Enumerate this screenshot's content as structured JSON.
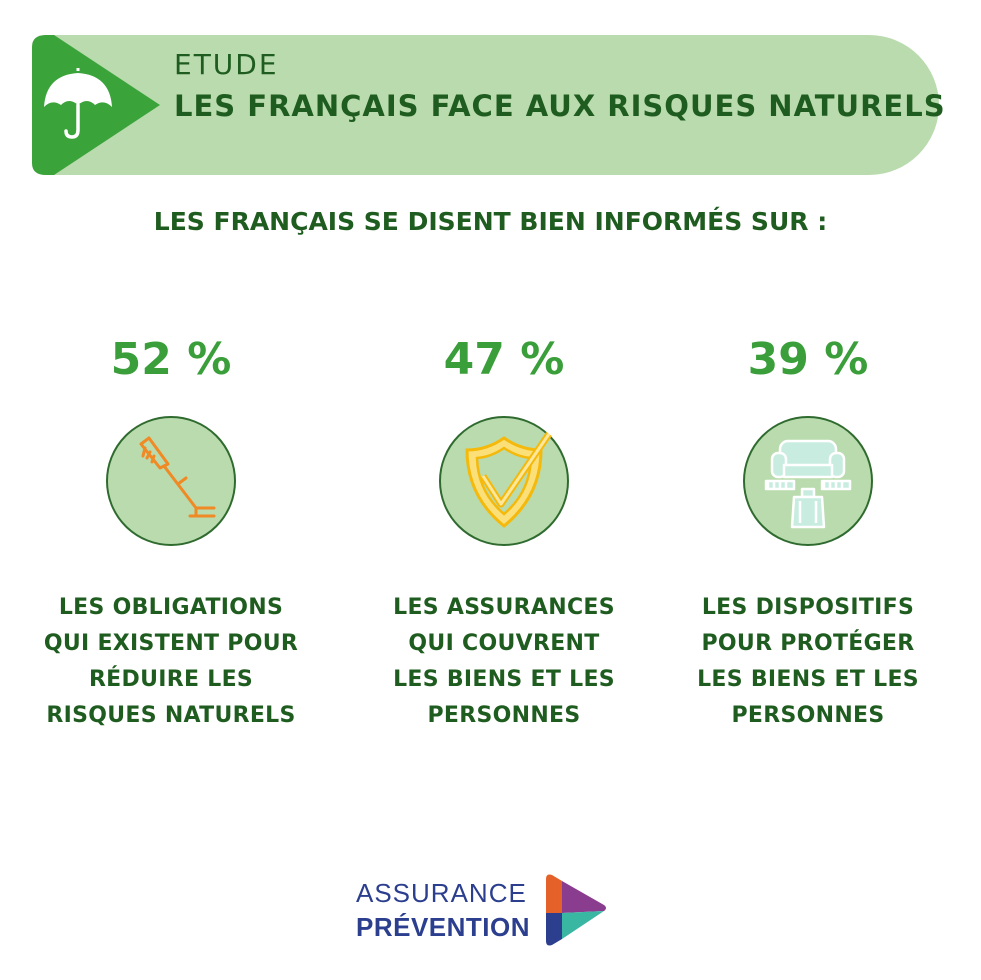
{
  "header": {
    "kicker": "ETUDE",
    "title": "LES FRANÇAIS FACE AUX RISQUES NATURELS",
    "icon": "umbrella-icon",
    "colors": {
      "banner_bg": "#b9dbae",
      "play_mark": "#3aa33a",
      "text": "#1f5c1f"
    }
  },
  "subtitle": "LES FRANÇAIS SE DISENT BIEN INFORMÉS SUR :",
  "stats": [
    {
      "percent": "52 %",
      "value": 52,
      "icon": "strimmer-icon",
      "label_lines": [
        "LES OBLIGATIONS",
        "QUI EXISTENT POUR",
        "RÉDUIRE LES",
        "RISQUES NATURELS"
      ]
    },
    {
      "percent": "47 %",
      "value": 47,
      "icon": "shield-check-icon",
      "label_lines": [
        "LES ASSURANCES",
        "QUI COUVRENT",
        "LES BIENS ET LES",
        "PERSONNES"
      ]
    },
    {
      "percent": "39 %",
      "value": 39,
      "icon": "sofa-person-icon",
      "label_lines": [
        "LES DISPOSITIFS",
        "POUR PROTÉGER",
        "LES BIENS ET LES",
        "PERSONNES"
      ]
    }
  ],
  "footer": {
    "logo_line1": "ASSURANCE",
    "logo_line2": "PRÉVENTION",
    "logo_colors": [
      "#e5612a",
      "#8a3c8f",
      "#2c3f8f",
      "#3ab7a3"
    ]
  }
}
